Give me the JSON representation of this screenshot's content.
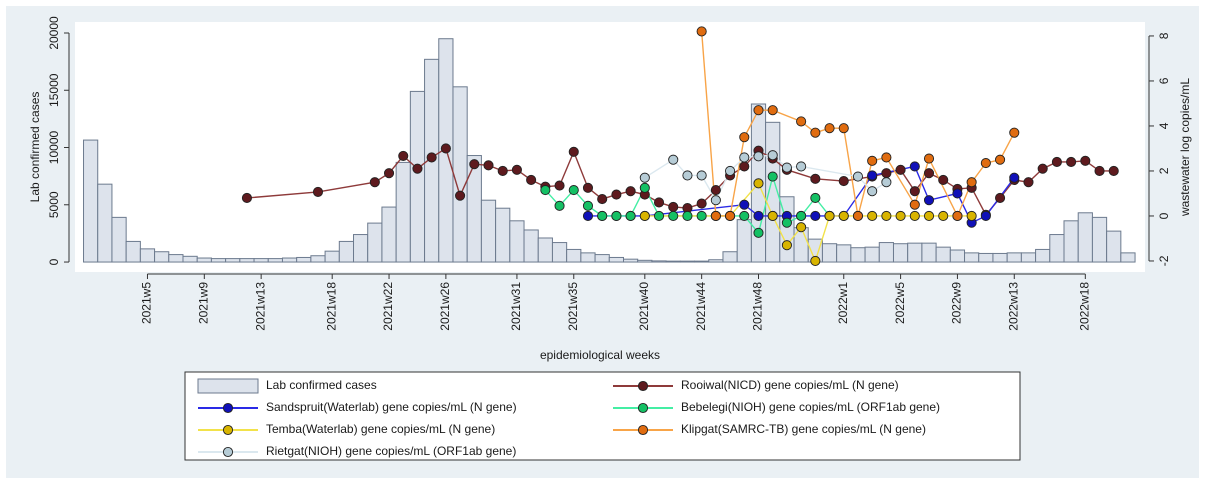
{
  "chart_data": {
    "type": "bar-line",
    "xlabel": "epidemiological weeks",
    "ylabel": "Lab  confirmed cases",
    "y2label": "wastewater log copies/mL",
    "xlim": [
      -0.1,
      75.2
    ],
    "xticks": [
      {
        "value": 5,
        "label": "2021w5"
      },
      {
        "value": 9,
        "label": "2021w9"
      },
      {
        "value": 13,
        "label": "2021w13"
      },
      {
        "value": 18,
        "label": "2021w18"
      },
      {
        "value": 22,
        "label": "2021w22"
      },
      {
        "value": 26,
        "label": "2021w26"
      },
      {
        "value": 31,
        "label": "2021w31"
      },
      {
        "value": 35,
        "label": "2021w35"
      },
      {
        "value": 40,
        "label": "2021w40"
      },
      {
        "value": 44,
        "label": "2021w44"
      },
      {
        "value": 48,
        "label": "2021w48"
      },
      {
        "value": 54,
        "label": "2022w1"
      },
      {
        "value": 58,
        "label": "2022w5"
      },
      {
        "value": 62,
        "label": "2022w9"
      },
      {
        "value": 66,
        "label": "2022w13"
      },
      {
        "value": 71,
        "label": "2022w18"
      }
    ],
    "ylim": [
      -870,
      20960
    ],
    "yticks": [
      0,
      5000,
      10000,
      15000,
      20000
    ],
    "y2lim": [
      -2.49,
      8.62
    ],
    "y2ticks": [
      -2,
      0,
      2,
      4,
      6,
      8
    ],
    "legend_columns": 2,
    "series": [
      {
        "name": "Lab  confirmed cases",
        "type": "bar",
        "color": "#dde3ec",
        "edge_color": "#6c7a8e",
        "x": [
          1,
          2,
          3,
          4,
          5,
          6,
          7,
          8,
          9,
          10,
          11,
          12,
          13,
          14,
          15,
          16,
          17,
          18,
          19,
          20,
          21,
          22,
          23,
          24,
          25,
          26,
          27,
          28,
          29,
          30,
          31,
          32,
          33,
          34,
          35,
          36,
          37,
          38,
          39,
          40,
          41,
          42,
          43,
          44,
          45,
          46,
          47,
          48,
          49,
          50,
          51,
          52,
          53,
          54,
          55,
          56,
          57,
          58,
          59,
          60,
          61,
          62,
          63,
          64,
          65,
          66,
          67,
          68,
          69,
          70,
          71,
          72,
          73,
          74
        ],
        "values": [
          10650,
          6800,
          3900,
          1800,
          1150,
          900,
          650,
          500,
          350,
          300,
          300,
          300,
          300,
          300,
          350,
          400,
          550,
          950,
          1800,
          2400,
          3400,
          4800,
          8700,
          14900,
          17700,
          19500,
          15300,
          9300,
          5400,
          4700,
          3600,
          2800,
          2100,
          1700,
          1100,
          800,
          650,
          400,
          250,
          150,
          100,
          80,
          80,
          80,
          200,
          900,
          3700,
          13800,
          12200,
          5700,
          3000,
          2000,
          1600,
          1500,
          1250,
          1300,
          1700,
          1600,
          1650,
          1650,
          1300,
          1050,
          800,
          750,
          750,
          800,
          800,
          1100,
          2400,
          3600,
          4300,
          3900,
          2700,
          800
        ]
      },
      {
        "name": "Rooiwal(NICD) gene copies/mL (N gene)",
        "type": "line",
        "axis": "y2",
        "color": "#8e3a3a",
        "marker_color": "#5e1a1e",
        "x": [
          12,
          17,
          21,
          22,
          23,
          24,
          25,
          26,
          27,
          28,
          29,
          30,
          31,
          32,
          33,
          34,
          35,
          36,
          37,
          38,
          39,
          40,
          41,
          42,
          43,
          44,
          45,
          46,
          47,
          48,
          49,
          50,
          52,
          54,
          56,
          57,
          58,
          59,
          60,
          61,
          62,
          63,
          64,
          65,
          66,
          67,
          68,
          69,
          70,
          71,
          72,
          73
        ],
        "values": [
          0.8,
          1.07,
          1.5,
          1.9,
          2.67,
          2.1,
          2.6,
          3.0,
          0.9,
          2.3,
          2.25,
          2.0,
          2.05,
          1.6,
          1.3,
          1.35,
          2.85,
          1.25,
          0.75,
          0.95,
          1.1,
          0.95,
          0.6,
          0.4,
          0.35,
          0.55,
          1.15,
          1.8,
          2.2,
          2.9,
          2.55,
          2.05,
          1.65,
          1.55,
          1.75,
          1.9,
          2.05,
          1.1,
          1.9,
          1.6,
          1.2,
          1.25,
          0.05,
          0.8,
          1.6,
          1.5,
          2.1,
          2.4,
          2.4,
          2.45,
          2.0,
          2.0
        ]
      },
      {
        "name": "Sandspruit(Waterlab) gene copies/mL (N gene)",
        "type": "line",
        "axis": "y2",
        "color": "#2a2ae6",
        "marker_color": "#1010b8",
        "x": [
          36,
          37,
          38,
          39,
          40,
          47,
          48,
          49,
          50,
          51,
          52,
          53,
          54,
          56,
          59,
          60,
          62,
          63,
          64,
          66
        ],
        "values": [
          0,
          0,
          0,
          0,
          0,
          0.5,
          0,
          0,
          0,
          0,
          0,
          0,
          0,
          1.8,
          2.2,
          0.7,
          1.0,
          -0.3,
          0,
          1.7
        ]
      },
      {
        "name": "Bebelegi(NIOH) gene copies/mL (ORF1ab gene)",
        "type": "line",
        "axis": "y2",
        "color": "#44eea4",
        "marker_color": "#14c064",
        "x": [
          33,
          34,
          35,
          36,
          37,
          38,
          39,
          40,
          41,
          42,
          43,
          44,
          45,
          46,
          47,
          48,
          49,
          50,
          51,
          52,
          53
        ],
        "values": [
          1.15,
          0.45,
          1.15,
          0.45,
          0,
          0,
          0,
          1.25,
          0,
          0,
          0,
          0,
          0,
          0,
          0,
          -0.75,
          1.75,
          -0.3,
          0,
          0.8,
          0
        ]
      },
      {
        "name": "Temba(Waterlab) gene copies/mL (N gene)",
        "type": "line",
        "axis": "y2",
        "color": "#f2e24a",
        "marker_color": "#d8b400",
        "x": [
          40,
          45,
          46,
          48,
          49,
          50,
          51,
          52,
          53,
          54,
          55,
          56,
          57,
          58,
          59,
          60,
          61,
          62,
          63
        ],
        "values": [
          0,
          0,
          0,
          1.45,
          0,
          -1.3,
          -0.5,
          -2.0,
          0,
          0,
          0,
          0,
          0,
          0,
          0,
          0,
          0,
          0,
          0
        ]
      },
      {
        "name": "Klipgat(SAMRC-TB) gene copies/mL (N gene)",
        "type": "line",
        "axis": "y2",
        "color": "#f8a448",
        "marker_color": "#e06c10",
        "x": [
          44,
          45,
          46,
          47,
          48,
          49,
          51,
          52,
          53,
          54,
          55,
          56,
          57,
          59,
          60,
          62,
          63,
          64,
          65,
          66
        ],
        "values": [
          8.2,
          0,
          0,
          3.5,
          4.7,
          4.7,
          4.2,
          3.7,
          3.9,
          3.9,
          0,
          2.45,
          2.6,
          0.5,
          2.55,
          0,
          1.5,
          2.35,
          2.5,
          3.7
        ]
      },
      {
        "name": "Rietgat(NIOH) gene copies/mL (ORF1ab gene)",
        "type": "line",
        "axis": "y2",
        "color": "#dbe8ef",
        "marker_color": "#b6ccd6",
        "x": [
          40,
          42,
          43,
          44,
          45,
          46,
          47,
          48,
          49,
          50,
          51,
          55,
          56,
          57
        ],
        "values": [
          1.7,
          2.5,
          1.8,
          1.8,
          0.7,
          2.0,
          2.6,
          2.65,
          2.7,
          2.15,
          2.2,
          1.75,
          1.1,
          1.5
        ]
      }
    ]
  }
}
